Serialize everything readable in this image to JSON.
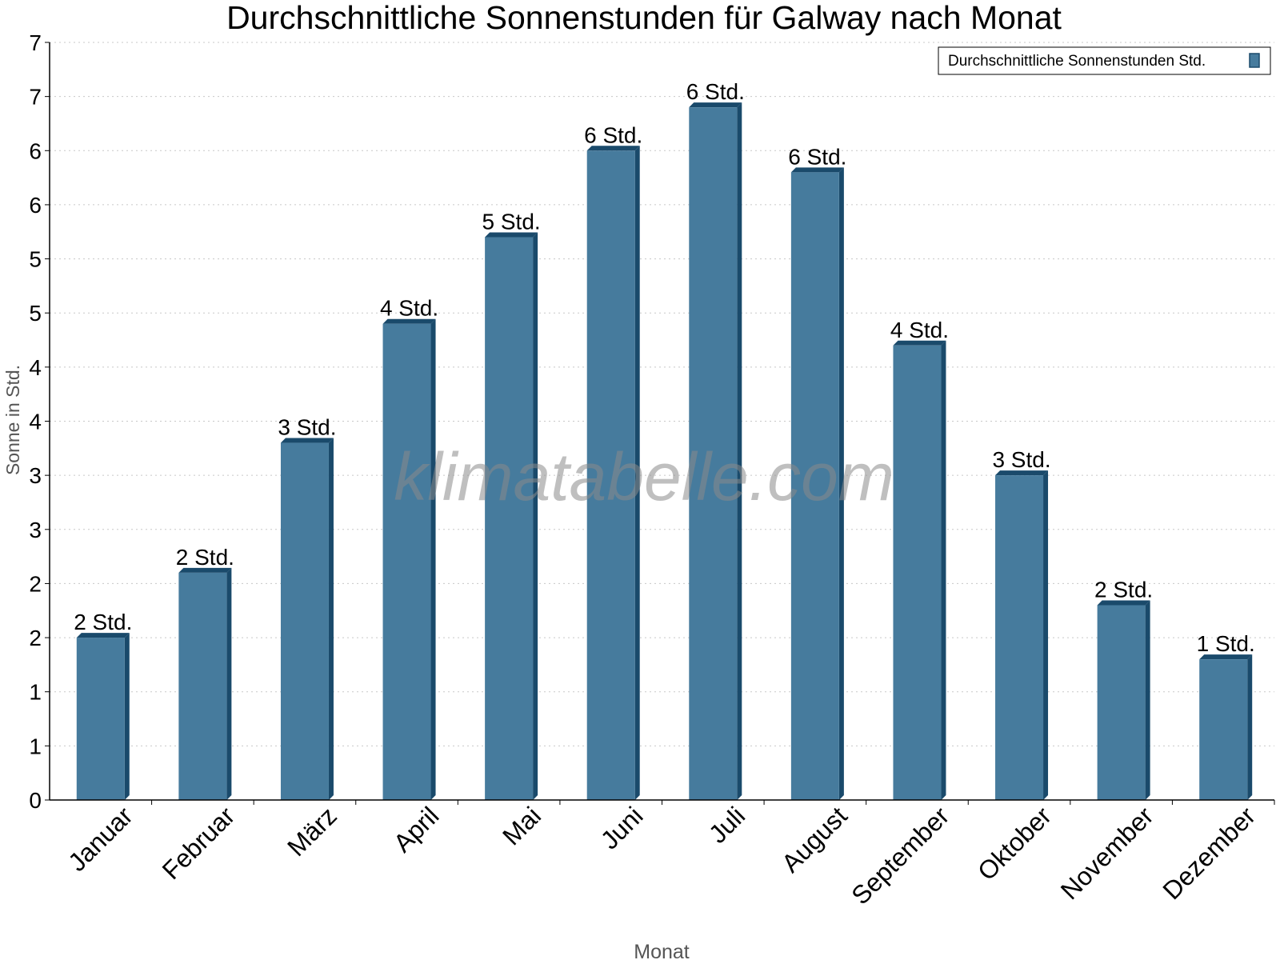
{
  "chart_data": {
    "type": "bar",
    "title": "Durchschnittliche Sonnenstunden für Galway nach Monat",
    "xlabel": "Monat",
    "ylabel": "Sonne in Std.",
    "categories": [
      "Januar",
      "Februar",
      "März",
      "April",
      "Mai",
      "Juni",
      "Juli",
      "August",
      "September",
      "Oktober",
      "November",
      "Dezember"
    ],
    "series": [
      {
        "name": "Durchschnittliche Sonnenstunden Std.",
        "values": [
          1.5,
          2.1,
          3.3,
          4.4,
          5.2,
          6.0,
          6.4,
          5.8,
          4.2,
          3.0,
          1.8,
          1.3
        ],
        "data_labels": [
          "2 Std.",
          "2 Std.",
          "3 Std.",
          "4 Std.",
          "5 Std.",
          "6 Std.",
          "6 Std.",
          "6 Std.",
          "4 Std.",
          "3 Std.",
          "2 Std.",
          "1 Std."
        ]
      }
    ],
    "ylim": [
      0,
      7
    ],
    "yticks": [
      0,
      0.5,
      1,
      1.5,
      2,
      2.5,
      3,
      3.5,
      4,
      4.5,
      5,
      5.5,
      6,
      6.5,
      7
    ],
    "ytick_labels": [
      "0",
      "1",
      "1",
      "2",
      "2",
      "3",
      "3",
      "4",
      "4",
      "5",
      "5",
      "6",
      "6",
      "7",
      "7"
    ],
    "grid": true,
    "legend_position": "top-right",
    "watermark": "klimatabelle.com",
    "colors": {
      "bar": "#467b9d",
      "bar_side": "#1a4a6b",
      "grid": "#c8c8c8"
    }
  }
}
